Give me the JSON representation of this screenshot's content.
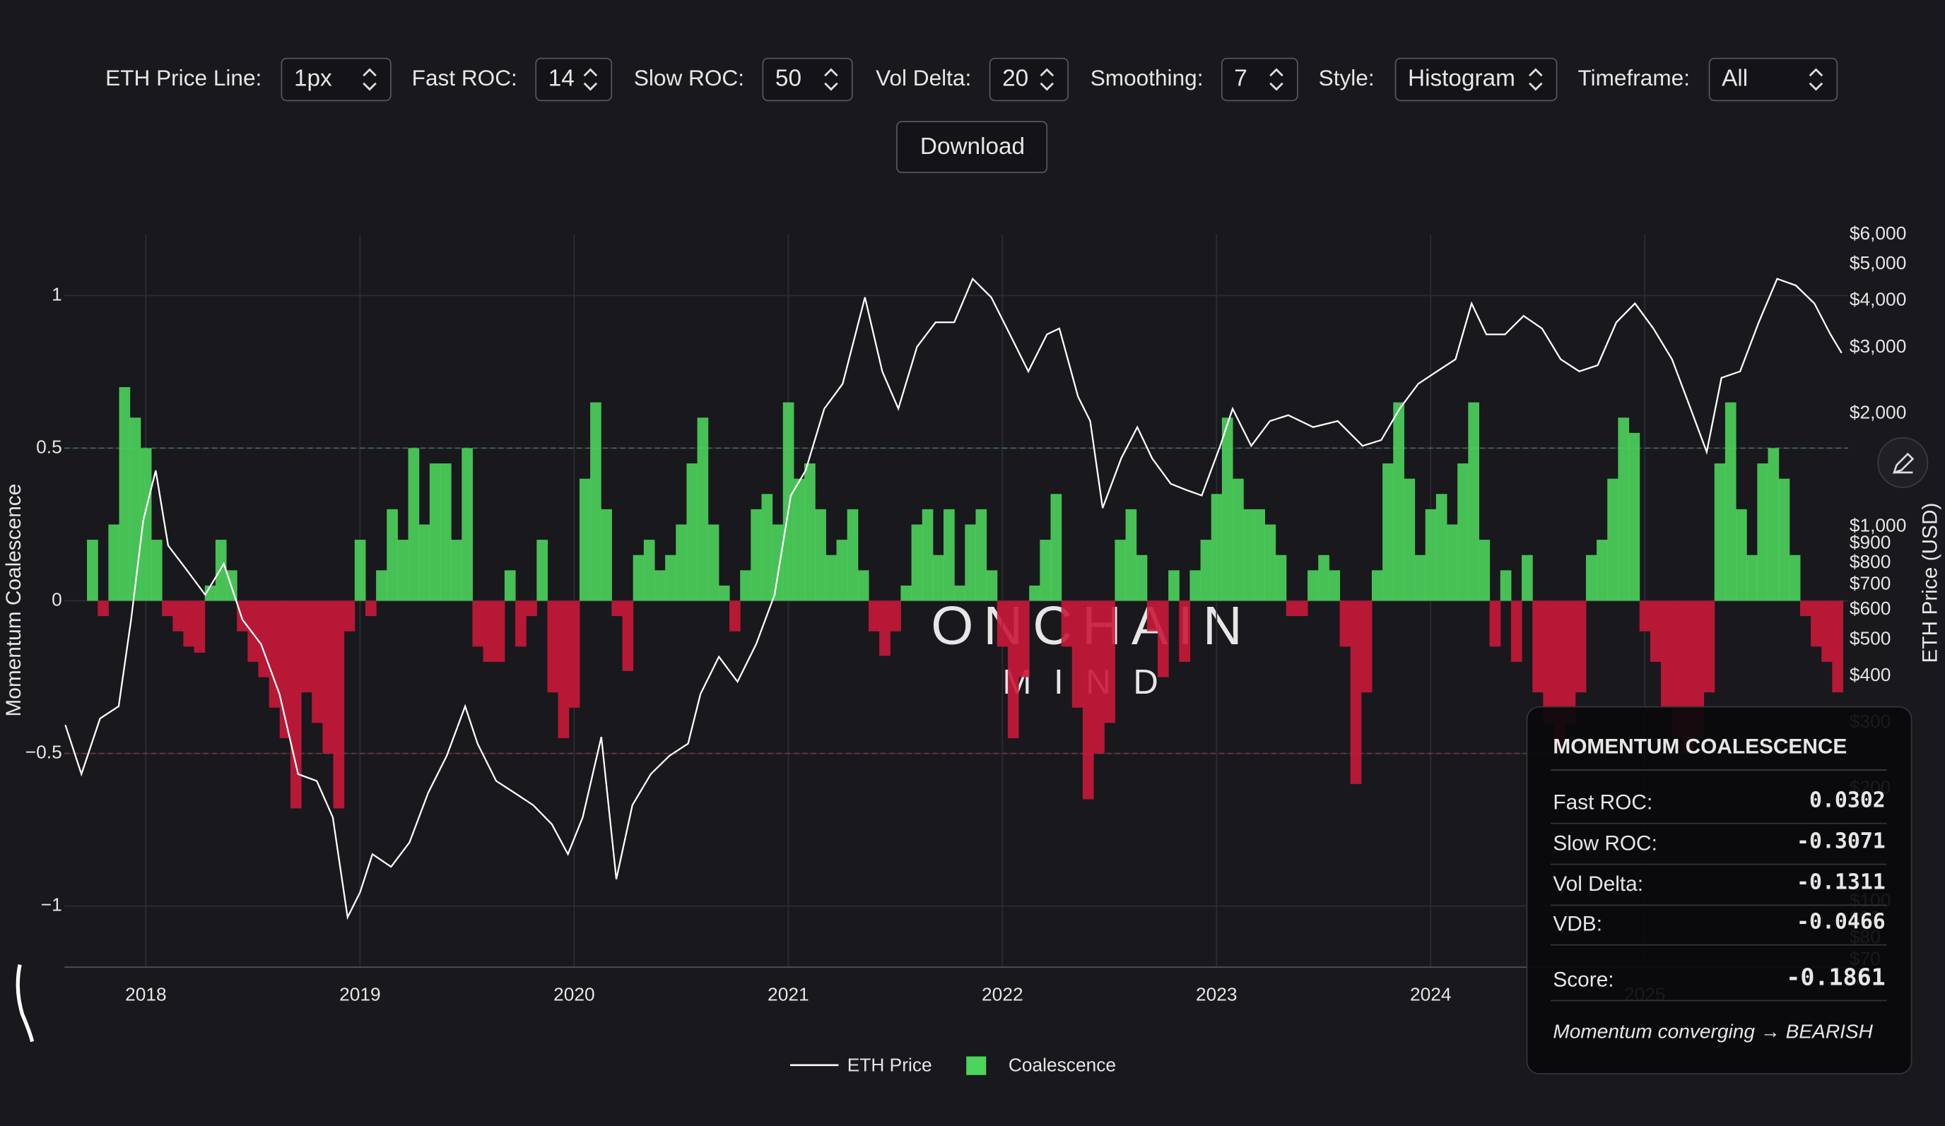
{
  "controls": [
    {
      "label": "ETH Price Line:",
      "value": "1px"
    },
    {
      "label": "Fast ROC:",
      "value": 14
    },
    {
      "label": "Slow ROC:",
      "value": 50
    },
    {
      "label": "Vol Delta:",
      "value": 20
    },
    {
      "label": "Smoothing:",
      "value": 7
    },
    {
      "label": "Style:",
      "value": "Histogram"
    },
    {
      "label": "Timeframe:",
      "value": "All"
    }
  ],
  "button": "Download",
  "watermark": [
    "ONCHAIN",
    "MIND"
  ],
  "chart_data": {
    "type": "combo",
    "y_label": "Momentum Coalescence",
    "y2_label": "ETH Price (USD)",
    "xlim": [
      2017.62,
      2025.95
    ],
    "xticks": [
      2018,
      2019,
      2020,
      2021,
      2022,
      2023,
      2024,
      2025
    ],
    "ylim": [
      -1.2,
      1.2
    ],
    "yticks": [
      {
        "value": -1,
        "label": "−1"
      },
      {
        "value": -0.5,
        "label": "−0.5"
      },
      0,
      0.5,
      1
    ],
    "y2lim": [
      67,
      6000
    ],
    "y2_log": true,
    "y2ticks": [
      {
        "value": 6000,
        "label": "$6,000"
      },
      {
        "value": 5000,
        "label": "$5,000"
      },
      {
        "value": 4000,
        "label": "$4,000"
      },
      {
        "value": 3000,
        "label": "$3,000"
      },
      {
        "value": 2000,
        "label": "$2,000"
      },
      {
        "value": 1000,
        "label": "$1,000"
      },
      {
        "value": 900,
        "label": "$900"
      },
      {
        "value": 800,
        "label": "$800"
      },
      {
        "value": 700,
        "label": "$700"
      },
      {
        "value": 600,
        "label": "$600"
      },
      {
        "value": 500,
        "label": "$500"
      },
      {
        "value": 400,
        "label": "$400"
      },
      {
        "value": 300,
        "label": "$300"
      },
      {
        "value": 200,
        "label": "$200"
      },
      {
        "value": 100,
        "label": "$100"
      },
      {
        "value": 90,
        "label": "$90"
      },
      {
        "value": 80,
        "label": "$80"
      },
      {
        "value": 70,
        "label": "$70"
      }
    ],
    "grid": true,
    "hlines": [
      {
        "value": 0.5,
        "color": "#3f6b55"
      },
      {
        "value": -0.5,
        "color": "#6b3a44"
      }
    ],
    "series": [
      {
        "name": "ETH Price",
        "type": "line",
        "axis": "y2",
        "color": "#ffffff",
        "x": [
          2017.624,
          2017.699,
          2017.786,
          2017.873,
          2017.931,
          2017.988,
          2018.046,
          2018.104,
          2018.191,
          2018.277,
          2018.364,
          2018.451,
          2018.538,
          2018.624,
          2018.711,
          2018.798,
          2018.873,
          2018.942,
          2019.0,
          2019.058,
          2019.145,
          2019.231,
          2019.318,
          2019.405,
          2019.491,
          2019.549,
          2019.636,
          2019.723,
          2019.809,
          2019.896,
          2019.971,
          2020.04,
          2020.127,
          2020.197,
          2020.272,
          2020.358,
          2020.445,
          2020.532,
          2020.59,
          2020.676,
          2020.763,
          2020.85,
          2020.936,
          2021.012,
          2021.081,
          2021.168,
          2021.254,
          2021.358,
          2021.439,
          2021.514,
          2021.601,
          2021.688,
          2021.775,
          2021.861,
          2021.948,
          2022.035,
          2022.121,
          2022.208,
          2022.266,
          2022.353,
          2022.41,
          2022.468,
          2022.555,
          2022.63,
          2022.699,
          2022.786,
          2022.861,
          2022.931,
          2023.017,
          2023.075,
          2023.162,
          2023.249,
          2023.335,
          2023.451,
          2023.566,
          2023.682,
          2023.769,
          2023.855,
          2023.942,
          2024.029,
          2024.116,
          2024.191,
          2024.26,
          2024.347,
          2024.434,
          2024.52,
          2024.607,
          2024.694,
          2024.78,
          2024.867,
          2024.954,
          2025.04,
          2025.127,
          2025.214,
          2025.289,
          2025.358,
          2025.445,
          2025.532,
          2025.618,
          2025.705,
          2025.792,
          2025.867,
          2025.919
        ],
        "values": [
          296,
          219,
          308,
          332,
          565,
          1040,
          1410,
          890,
          766,
          658,
          796,
          565,
          486,
          358,
          219,
          210,
          168,
          91,
          106,
          134,
          124,
          144,
          195,
          245,
          332,
          264,
          210,
          195,
          181,
          161,
          134,
          168,
          275,
          115,
          181,
          219,
          245,
          264,
          358,
          450,
          386,
          486,
          658,
          1210,
          1410,
          2060,
          2400,
          4080,
          2590,
          2060,
          3010,
          3500,
          3500,
          4570,
          4080,
          3250,
          2590,
          3250,
          3370,
          2220,
          1910,
          1120,
          1520,
          1840,
          1520,
          1300,
          1250,
          1210,
          1640,
          2060,
          1640,
          1910,
          1980,
          1840,
          1910,
          1640,
          1700,
          2060,
          2400,
          2590,
          2790,
          3930,
          3250,
          3250,
          3640,
          3370,
          2790,
          2590,
          2690,
          3500,
          3930,
          3370,
          2790,
          2060,
          1580,
          2490,
          2590,
          3500,
          4570,
          4390,
          3930,
          3250,
          2900
        ]
      },
      {
        "name": "Coalescence",
        "type": "bar",
        "color": "#4cd45c",
        "negative_color": "#c8183a",
        "x": [
          2017.75,
          2017.8,
          2017.85,
          2017.9,
          2017.95,
          2018,
          2018.05,
          2018.1,
          2018.15,
          2018.2,
          2018.25,
          2018.3,
          2018.35,
          2018.4,
          2018.45,
          2018.5,
          2018.55,
          2018.6,
          2018.65,
          2018.7,
          2018.75,
          2018.8,
          2018.85,
          2018.9,
          2018.95,
          2019,
          2019.05,
          2019.1,
          2019.15,
          2019.2,
          2019.25,
          2019.3,
          2019.35,
          2019.4,
          2019.45,
          2019.5,
          2019.55,
          2019.6,
          2019.65,
          2019.7,
          2019.75,
          2019.8,
          2019.85,
          2019.9,
          2019.95,
          2020,
          2020.05,
          2020.1,
          2020.15,
          2020.2,
          2020.25,
          2020.3,
          2020.35,
          2020.4,
          2020.45,
          2020.5,
          2020.55,
          2020.6,
          2020.65,
          2020.7,
          2020.75,
          2020.8,
          2020.85,
          2020.9,
          2020.95,
          2021,
          2021.05,
          2021.1,
          2021.15,
          2021.2,
          2021.25,
          2021.3,
          2021.35,
          2021.4,
          2021.45,
          2021.5,
          2021.55,
          2021.6,
          2021.65,
          2021.7,
          2021.75,
          2021.8,
          2021.85,
          2021.9,
          2021.95,
          2022,
          2022.05,
          2022.1,
          2022.15,
          2022.2,
          2022.25,
          2022.3,
          2022.35,
          2022.4,
          2022.45,
          2022.5,
          2022.55,
          2022.6,
          2022.65,
          2022.7,
          2022.75,
          2022.8,
          2022.85,
          2022.9,
          2022.95,
          2023,
          2023.05,
          2023.1,
          2023.15,
          2023.2,
          2023.25,
          2023.3,
          2023.35,
          2023.4,
          2023.45,
          2023.5,
          2023.55,
          2023.6,
          2023.65,
          2023.7,
          2023.75,
          2023.8,
          2023.85,
          2023.9,
          2023.95,
          2024,
          2024.05,
          2024.1,
          2024.15,
          2024.2,
          2024.25,
          2024.3,
          2024.35,
          2024.4,
          2024.45,
          2024.5,
          2024.55,
          2024.6,
          2024.65,
          2024.7,
          2024.75,
          2024.8,
          2024.85,
          2024.9,
          2024.95,
          2025,
          2025.05,
          2025.1,
          2025.15,
          2025.2,
          2025.25,
          2025.3,
          2025.35,
          2025.4,
          2025.45,
          2025.5,
          2025.55,
          2025.6,
          2025.65,
          2025.7,
          2025.75,
          2025.8,
          2025.85,
          2025.9
        ],
        "values": [
          0.2,
          -0.05,
          0.25,
          0.7,
          0.6,
          0.5,
          0.2,
          -0.05,
          -0.1,
          -0.15,
          -0.17,
          0.05,
          0.2,
          0.1,
          -0.1,
          -0.2,
          -0.25,
          -0.35,
          -0.45,
          -0.68,
          -0.3,
          -0.4,
          -0.5,
          -0.68,
          -0.1,
          0.2,
          -0.05,
          0.1,
          0.3,
          0.2,
          0.5,
          0.25,
          0.45,
          0.45,
          0.2,
          0.5,
          -0.15,
          -0.2,
          -0.2,
          0.1,
          -0.15,
          -0.05,
          0.2,
          -0.3,
          -0.45,
          -0.35,
          0.4,
          0.65,
          0.3,
          -0.05,
          -0.23,
          0.15,
          0.2,
          0.1,
          0.15,
          0.25,
          0.45,
          0.6,
          0.25,
          0.05,
          -0.1,
          0.1,
          0.3,
          0.35,
          0.25,
          0.65,
          0.4,
          0.45,
          0.3,
          0.15,
          0.2,
          0.3,
          0.1,
          -0.1,
          -0.18,
          -0.1,
          0.05,
          0.25,
          0.3,
          0.15,
          0.3,
          0.05,
          0.25,
          0.3,
          0.1,
          -0.15,
          -0.45,
          -0.25,
          0.05,
          0.2,
          0.35,
          -0.15,
          -0.35,
          -0.65,
          -0.5,
          -0.4,
          0.2,
          0.3,
          0.15,
          -0.1,
          -0.25,
          0.1,
          -0.2,
          0.1,
          0.2,
          0.35,
          0.6,
          0.4,
          0.3,
          0.3,
          0.25,
          0.15,
          -0.05,
          -0.05,
          0.1,
          0.15,
          0.1,
          -0.15,
          -0.6,
          -0.3,
          0.1,
          0.45,
          0.65,
          0.4,
          0.15,
          0.3,
          0.35,
          0.25,
          0.45,
          0.65,
          0.2,
          -0.15,
          0.1,
          -0.2,
          0.15,
          -0.3,
          -0.4,
          -0.5,
          -0.4,
          -0.3,
          0.15,
          0.2,
          0.4,
          0.6,
          0.55,
          -0.1,
          -0.2,
          -0.35,
          -0.45,
          -0.5,
          -0.45,
          -0.3,
          0.45,
          0.65,
          0.3,
          0.15,
          0.45,
          0.5,
          0.4,
          0.15,
          -0.05,
          -0.15,
          -0.2,
          -0.3
        ]
      }
    ]
  },
  "panel": {
    "title": "MOMENTUM COALESCENCE",
    "rows": [
      {
        "label": "Fast ROC:",
        "value": 0.0302,
        "color": "#22e03a"
      },
      {
        "label": "Slow ROC:",
        "value": -0.3071,
        "color": "#ff2a2a"
      },
      {
        "label": "Vol Delta:",
        "value": -0.1311,
        "color": "#ff2a2a"
      },
      {
        "label": "VDB:",
        "value": -0.0466,
        "color": "#ff2a2a"
      },
      {
        "label": "Score:",
        "value": -0.1861,
        "color": "#ff2a2a"
      }
    ],
    "footer": "Momentum converging → BEARISH",
    "footer_color": "#e8202a"
  }
}
